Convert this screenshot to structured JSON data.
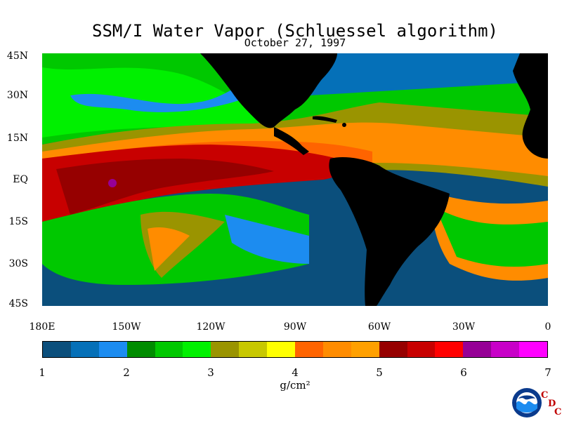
{
  "title": "SSM/I Water Vapor (Schluessel algorithm)",
  "date": "October 27, 1997",
  "lat_labels": [
    "45N",
    "30N",
    "15N",
    "EQ",
    "15S",
    "30S",
    "45S"
  ],
  "lon_labels": [
    "180E",
    "150W",
    "120W",
    "90W",
    "60W",
    "30W",
    "0"
  ],
  "colorbar": {
    "colors": [
      "#0b4f7c",
      "#0570b8",
      "#1c8cf0",
      "#008c00",
      "#00c800",
      "#00f000",
      "#9a9400",
      "#c8c800",
      "#ffff00",
      "#ff6400",
      "#ff8c00",
      "#ffa000",
      "#960000",
      "#c80000",
      "#ff0000",
      "#960096",
      "#c800c8",
      "#ff00ff"
    ],
    "tick_labels": [
      "1",
      "2",
      "3",
      "4",
      "5",
      "6",
      "7"
    ],
    "units": "g/cm²"
  },
  "logo": {
    "name": "NOAA",
    "cdc_letters": [
      "C",
      "D",
      "C"
    ]
  }
}
